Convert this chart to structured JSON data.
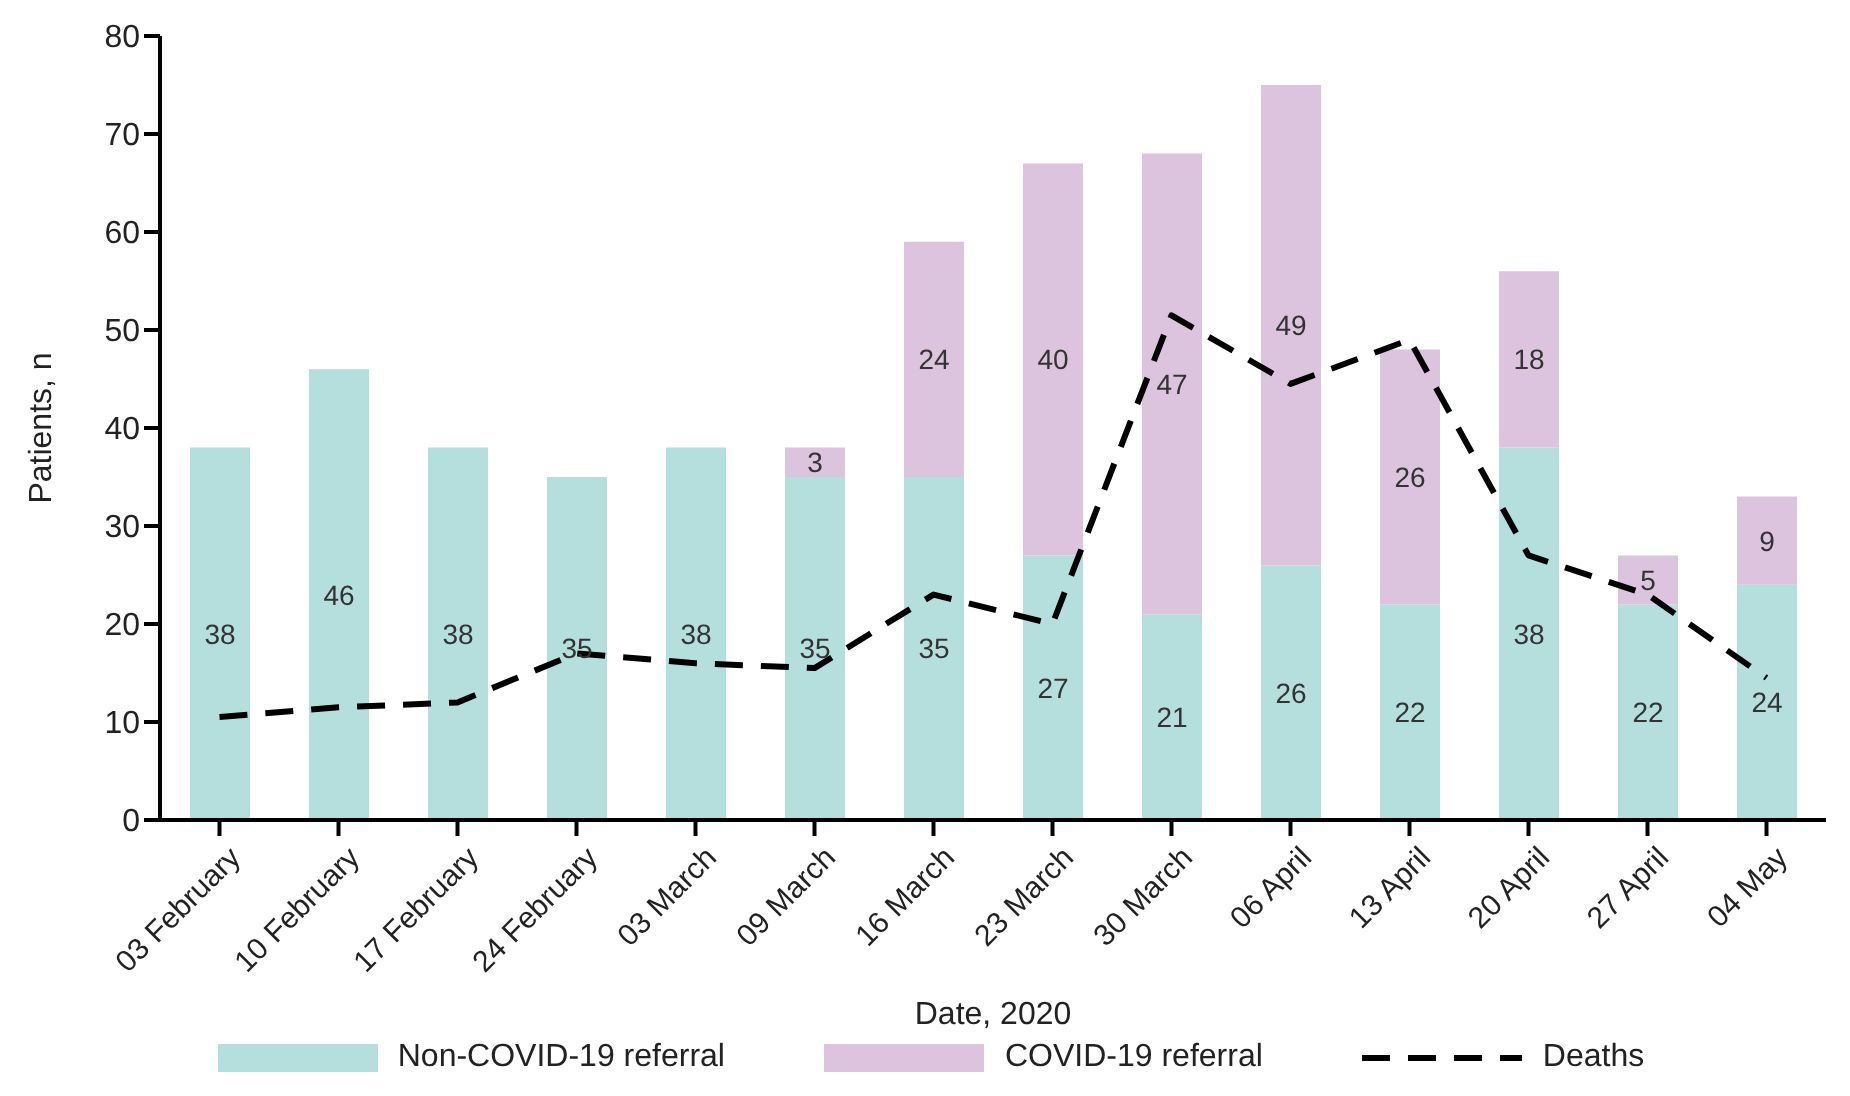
{
  "chart_data": {
    "type": "bar",
    "stacked": true,
    "xlabel": "Date, 2020",
    "ylabel": "Patients, n",
    "categories": [
      "03 February",
      "10 February",
      "17 February",
      "24 February",
      "03 March",
      "09 March",
      "16 March",
      "23 March",
      "30 March",
      "06 April",
      "13 April",
      "20 April",
      "27 April",
      "04 May"
    ],
    "series": [
      {
        "name": "Non-COVID-19 referral",
        "color": "#b5dfdd",
        "values": [
          38,
          46,
          38,
          35,
          38,
          35,
          35,
          27,
          21,
          26,
          22,
          38,
          22,
          24
        ],
        "value_labels": [
          "38",
          "46",
          "38",
          "35",
          "38",
          "35",
          "35",
          "27",
          "21",
          "26",
          "22",
          "38",
          "22",
          "24"
        ]
      },
      {
        "name": "COVID-19 referral",
        "color": "#dcc3de",
        "values": [
          null,
          null,
          null,
          null,
          null,
          3,
          24,
          40,
          47,
          49,
          26,
          18,
          5,
          9
        ],
        "value_labels": [
          null,
          null,
          null,
          null,
          null,
          "3",
          "24",
          "40",
          "47",
          "49",
          "26",
          "18",
          "5",
          "9"
        ]
      },
      {
        "name": "Deaths",
        "type": "line",
        "color": "#000000",
        "line_style": "dashed",
        "values": [
          10.5,
          11.5,
          12,
          17,
          16,
          15.5,
          23,
          20,
          51.5,
          44.5,
          49,
          27,
          23,
          14.5
        ]
      }
    ],
    "ylim": [
      0,
      80
    ],
    "yticks": [
      0,
      10,
      20,
      30,
      40,
      50,
      60,
      70,
      80
    ],
    "grid": false,
    "legend": "bottom",
    "marker": "none"
  }
}
